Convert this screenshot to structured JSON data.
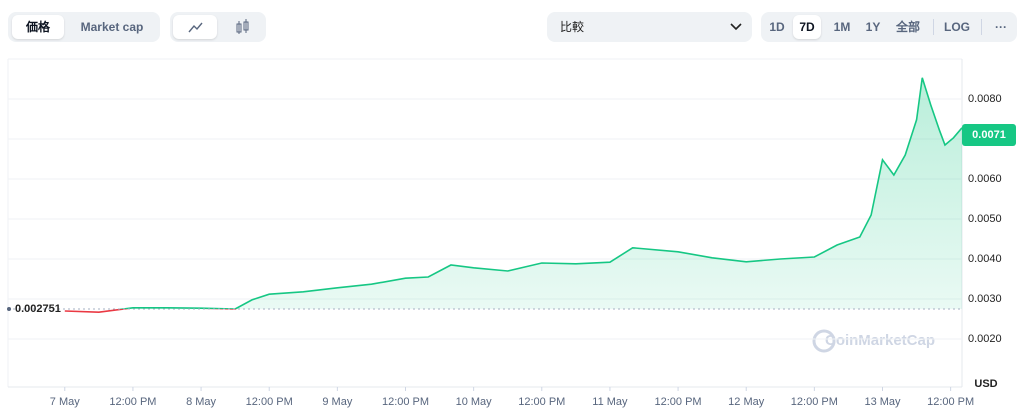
{
  "controls": {
    "view_tabs": [
      "価格",
      "Market cap"
    ],
    "compare": "比較",
    "ranges": [
      "1D",
      "7D",
      "1M",
      "1Y",
      "全部"
    ],
    "log": "LOG",
    "more": "···"
  },
  "chart_data": {
    "type": "line",
    "x": [
      0,
      6,
      12,
      18,
      24,
      30,
      33,
      36,
      42,
      48,
      54,
      60,
      64,
      68,
      72,
      78,
      84,
      90,
      96,
      100,
      108,
      114,
      120,
      126,
      132,
      136,
      140,
      142,
      144,
      146,
      148,
      150,
      151,
      152.5,
      154,
      155,
      156.5,
      158
    ],
    "series": [
      {
        "color": "#16c784",
        "below_color": "#ea3943",
        "values": [
          0.0027,
          0.00267,
          0.00278,
          0.00278,
          0.00277,
          0.00275,
          0.00298,
          0.00312,
          0.00318,
          0.00328,
          0.00337,
          0.00352,
          0.00355,
          0.00385,
          0.00378,
          0.0037,
          0.0039,
          0.00388,
          0.00392,
          0.00428,
          0.00418,
          0.00403,
          0.00393,
          0.004,
          0.00405,
          0.00435,
          0.00455,
          0.0051,
          0.00648,
          0.0061,
          0.0066,
          0.00748,
          0.00853,
          0.00785,
          0.00723,
          0.00685,
          0.00703,
          0.00728
        ]
      }
    ],
    "baseline": 0.002751,
    "current_price": 0.0071,
    "xlim": [
      -10,
      158
    ],
    "xticks": [
      {
        "value": 0,
        "label": "7 May"
      },
      {
        "value": 12,
        "label": "12:00 PM"
      },
      {
        "value": 24,
        "label": "8 May"
      },
      {
        "value": 36,
        "label": "12:00 PM"
      },
      {
        "value": 48,
        "label": "9 May"
      },
      {
        "value": 60,
        "label": "12:00 PM"
      },
      {
        "value": 72,
        "label": "10 May"
      },
      {
        "value": 84,
        "label": "12:00 PM"
      },
      {
        "value": 96,
        "label": "11 May"
      },
      {
        "value": 108,
        "label": "12:00 PM"
      },
      {
        "value": 120,
        "label": "12 May"
      },
      {
        "value": 132,
        "label": "12:00 PM"
      },
      {
        "value": 144,
        "label": "13 May"
      },
      {
        "value": 156,
        "label": "12:00 PM"
      }
    ],
    "ylim": [
      0.0008,
      0.009
    ],
    "yticks": [
      {
        "value": 0.002,
        "label": "0.0020"
      },
      {
        "value": 0.003,
        "label": "0.0030"
      },
      {
        "value": 0.004,
        "label": "0.0040"
      },
      {
        "value": 0.005,
        "label": "0.0050"
      },
      {
        "value": 0.006,
        "label": "0.0060"
      },
      {
        "value": 0.007,
        "label": "0.0070"
      },
      {
        "value": 0.008,
        "label": "0.0080"
      }
    ],
    "hidden_tick_labels": [
      5
    ],
    "grid": true,
    "currency": "USD",
    "watermark": "CoinMarketCap"
  }
}
